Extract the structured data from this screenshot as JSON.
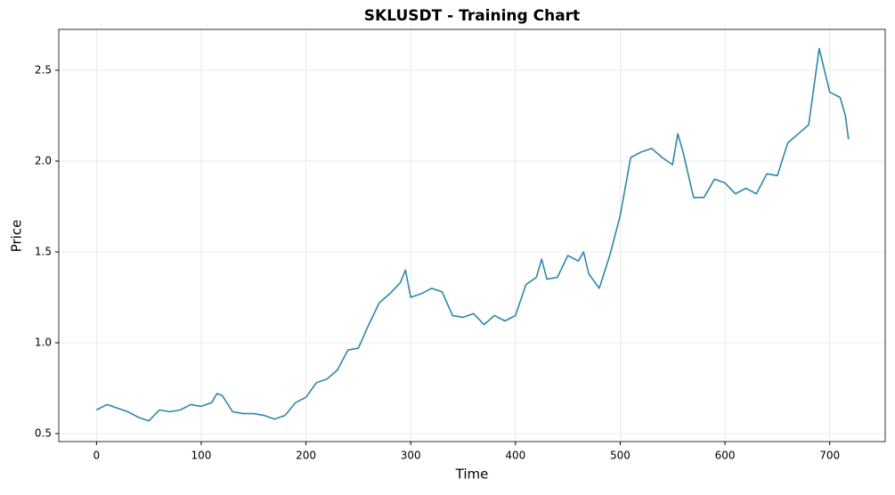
{
  "chart_data": {
    "type": "line",
    "title": "SKLUSDT - Training Chart",
    "x_label": "Time",
    "y_label": "Price",
    "x": [
      0,
      10,
      20,
      30,
      40,
      50,
      60,
      70,
      80,
      90,
      100,
      110,
      115,
      120,
      130,
      140,
      150,
      160,
      170,
      180,
      190,
      200,
      210,
      220,
      230,
      240,
      250,
      260,
      270,
      280,
      290,
      295,
      300,
      310,
      320,
      330,
      340,
      350,
      360,
      370,
      380,
      390,
      400,
      410,
      420,
      425,
      430,
      440,
      450,
      460,
      465,
      470,
      480,
      490,
      500,
      510,
      520,
      530,
      540,
      550,
      555,
      560,
      570,
      580,
      590,
      600,
      610,
      620,
      630,
      640,
      650,
      660,
      670,
      680,
      690,
      700,
      710,
      715,
      718
    ],
    "series": [
      {
        "name": "Price",
        "color": "#2e86ab",
        "values": [
          0.63,
          0.66,
          0.64,
          0.62,
          0.59,
          0.57,
          0.63,
          0.62,
          0.63,
          0.66,
          0.65,
          0.67,
          0.72,
          0.71,
          0.62,
          0.61,
          0.61,
          0.6,
          0.58,
          0.6,
          0.67,
          0.7,
          0.78,
          0.8,
          0.85,
          0.96,
          0.97,
          1.1,
          1.22,
          1.27,
          1.33,
          1.4,
          1.25,
          1.27,
          1.3,
          1.28,
          1.15,
          1.14,
          1.16,
          1.1,
          1.15,
          1.12,
          1.15,
          1.32,
          1.36,
          1.46,
          1.35,
          1.36,
          1.48,
          1.45,
          1.5,
          1.38,
          1.3,
          1.48,
          1.7,
          2.02,
          2.05,
          2.07,
          2.02,
          1.98,
          2.15,
          2.05,
          1.8,
          1.8,
          1.9,
          1.88,
          1.82,
          1.85,
          1.82,
          1.93,
          1.92,
          2.1,
          2.15,
          2.2,
          2.62,
          2.38,
          2.35,
          2.25,
          2.12
        ]
      }
    ],
    "xlim": [
      -36,
      753
    ],
    "ylim": [
      0.456,
      2.725
    ],
    "xticks": [
      0,
      100,
      200,
      300,
      400,
      500,
      600,
      700
    ],
    "yticks": [
      0.5,
      {
        "value": 1,
        "label": "1.0"
      },
      1.5,
      {
        "value": 2,
        "label": "2.0"
      },
      2.5
    ],
    "grid": true
  }
}
